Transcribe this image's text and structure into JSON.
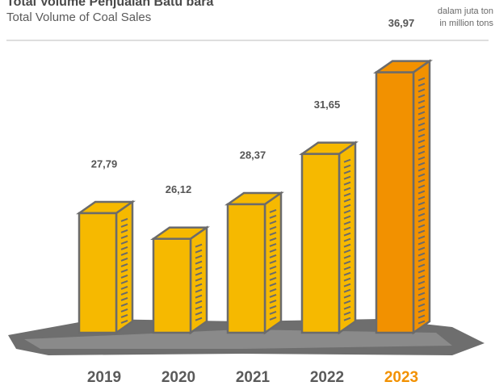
{
  "chart_data": {
    "type": "bar",
    "title": "Total Volume Penjualan Batu bara",
    "subtitle": "Total Volume of Coal Sales",
    "unit_note": [
      "dalam juta ton",
      "in million tons"
    ],
    "categories": [
      "2019",
      "2020",
      "2021",
      "2022",
      "2023"
    ],
    "values": [
      27.79,
      26.12,
      28.37,
      31.65,
      36.97
    ],
    "value_labels": [
      "27,79",
      "26,12",
      "28,37",
      "31,65",
      "36,97"
    ],
    "colors": [
      "#f6b900",
      "#f6b900",
      "#f6b900",
      "#f6b900",
      "#f29100"
    ],
    "category_label_colors": [
      "#5a5a5a",
      "#5a5a5a",
      "#5a5a5a",
      "#5a5a5a",
      "#f29100"
    ]
  }
}
